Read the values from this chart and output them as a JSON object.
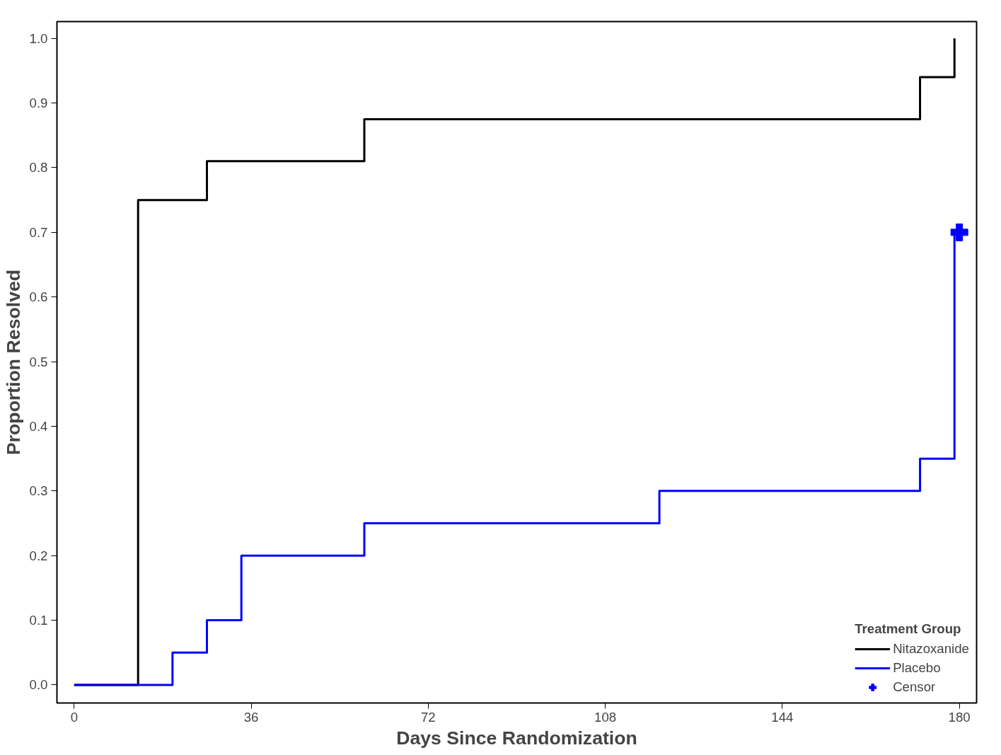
{
  "chart_data": {
    "type": "step",
    "xlabel": "Days Since Randomization",
    "ylabel": "Proportion Resolved",
    "legend_title": "Treatment Group",
    "legend": "bottom right",
    "grid": false,
    "xlim": [
      -3.5,
      183.5
    ],
    "xticks": [
      0,
      36,
      72,
      108,
      144,
      180
    ],
    "ylim": [
      -0.028,
      1.026
    ],
    "yticks": [
      {
        "value": 0,
        "label": "0.0"
      },
      0.1,
      0.2,
      0.3,
      0.4,
      0.5,
      0.6,
      0.7,
      0.8,
      0.9,
      {
        "value": 1,
        "label": "1.0"
      }
    ],
    "series": [
      {
        "name": "Nitazoxanide",
        "color": "#000000",
        "x": [
          0,
          13,
          27,
          59,
          172,
          179
        ],
        "values": [
          0,
          0.75,
          0.81,
          0.875,
          0.94,
          1.0
        ]
      },
      {
        "name": "Placebo",
        "color": "#0000ff",
        "x": [
          0,
          20,
          27,
          34,
          59,
          119,
          172,
          179,
          180
        ],
        "values": [
          0,
          0.05,
          0.1,
          0.2,
          0.25,
          0.3,
          0.35,
          0.7,
          0.7
        ]
      },
      {
        "name": "Censor",
        "type": "scatter",
        "marker": "cross",
        "color": "#0000ff",
        "x": [
          180
        ],
        "values": [
          0.7
        ]
      }
    ]
  }
}
